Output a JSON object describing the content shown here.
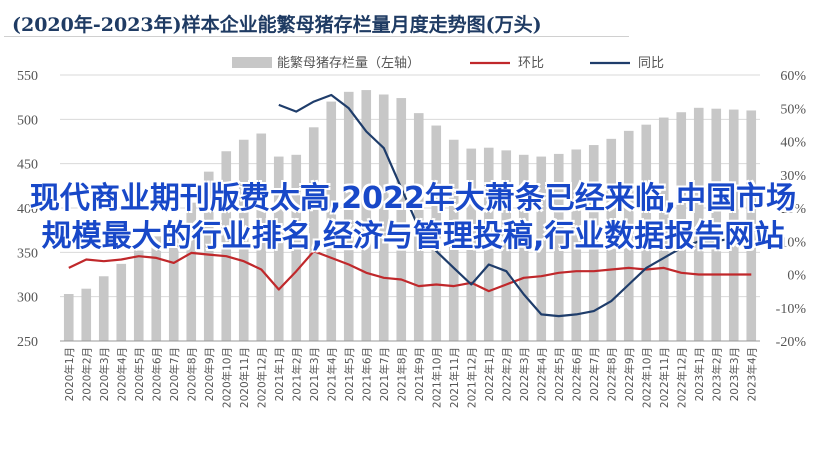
{
  "title": "(2020年-2023年)样本企业能繁母猪存栏量月度走势图(万头)",
  "overlay_text": "现代商业期刊版费太高,2022年大萧条已经来临,中国市场规模最大的行业排名,经济与管理投稿,行业数据报告网站",
  "colors": {
    "bar": "#c7c7c7",
    "huanbi": "#c0282b",
    "tongbi": "#1f3d6b",
    "axis": "#9a9a9a",
    "grid": "#d9d9d9",
    "text": "#555555"
  },
  "chart_data": {
    "type": "bar",
    "title": "(2020年-2023年)样本企业能繁母猪存栏量月度走势图(万头)",
    "categories": [
      "2020年1月",
      "2020年2月",
      "2020年3月",
      "2020年4月",
      "2020年5月",
      "2020年6月",
      "2020年7月",
      "2020年8月",
      "2020年9月",
      "2020年10月",
      "2020年11月",
      "2020年12月",
      "2021年1月",
      "2021年2月",
      "2021年3月",
      "2021年4月",
      "2021年5月",
      "2021年6月",
      "2021年7月",
      "2021年8月",
      "2021年9月",
      "2021年10月",
      "2021年11月",
      "2021年12月",
      "2022年1月",
      "2022年2月",
      "2022年3月",
      "2022年4月",
      "2022年5月",
      "2022年6月",
      "2022年7月",
      "2022年8月",
      "2022年9月",
      "2022年10月",
      "2022年11月",
      "2022年12月",
      "2023年1月",
      "2023年2月",
      "2023年3月",
      "2023年4月"
    ],
    "yleft_ticks": [
      "550",
      "500",
      "450",
      "400",
      "350",
      "300",
      "250"
    ],
    "yright_ticks": [
      "60%",
      "50%",
      "40%",
      "30%",
      "20%",
      "10%",
      "0%",
      "-10%",
      "-20%"
    ],
    "yleft_lim": [
      250,
      550
    ],
    "yright_lim": [
      -0.2,
      0.6
    ],
    "legend_position": "top",
    "series": [
      {
        "name": "能繁母猪存栏量（左轴）",
        "type": "bar",
        "axis": "left",
        "values": [
          303,
          309,
          323,
          337,
          352,
          368,
          383,
          406,
          441,
          464,
          477,
          484,
          458,
          460,
          491,
          520,
          531,
          533,
          528,
          524,
          507,
          493,
          477,
          467,
          468,
          465,
          460,
          458,
          461,
          466,
          471,
          478,
          487,
          494,
          502,
          508,
          513,
          512,
          511,
          510
        ]
      },
      {
        "name": "环比",
        "type": "line",
        "axis": "right",
        "values": [
          0.02,
          0.045,
          0.04,
          0.045,
          0.055,
          0.05,
          0.035,
          0.065,
          0.06,
          0.055,
          0.04,
          0.015,
          -0.045,
          0.01,
          0.07,
          0.05,
          0.03,
          0.005,
          -0.01,
          -0.015,
          -0.035,
          -0.03,
          -0.035,
          -0.025,
          -0.05,
          -0.03,
          -0.01,
          -0.005,
          0.005,
          0.01,
          0.01,
          0.015,
          0.02,
          0.015,
          0.02,
          0.005,
          0.0,
          0.0,
          0.0,
          0.0
        ]
      },
      {
        "name": "同比",
        "type": "line",
        "axis": "right",
        "values": [
          null,
          null,
          null,
          null,
          null,
          null,
          null,
          null,
          null,
          null,
          null,
          null,
          0.51,
          0.49,
          0.52,
          0.54,
          0.5,
          0.43,
          0.38,
          0.26,
          0.14,
          0.07,
          0.02,
          -0.03,
          0.03,
          0.01,
          -0.06,
          -0.12,
          -0.125,
          -0.12,
          -0.11,
          -0.08,
          -0.03,
          0.02,
          0.05,
          0.08,
          0.1,
          0.1,
          0.11,
          0.1
        ]
      }
    ]
  }
}
